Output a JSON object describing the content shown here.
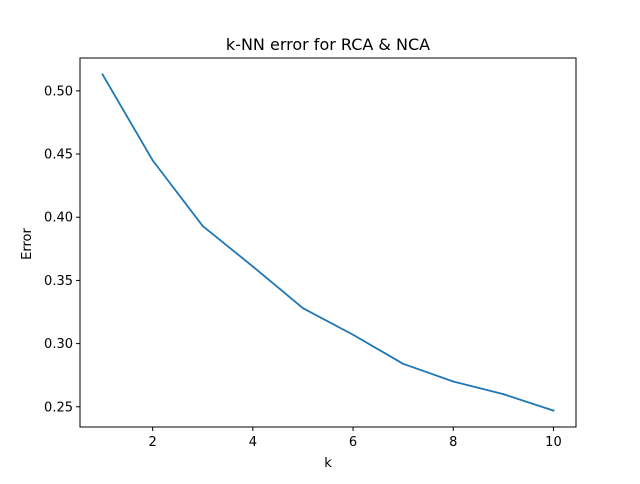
{
  "chart_data": {
    "type": "line",
    "title": "k-NN error for RCA & NCA",
    "xlabel": "k",
    "ylabel": "Error",
    "x": [
      1,
      2,
      3,
      4,
      5,
      6,
      7,
      8,
      9,
      10
    ],
    "series": [
      {
        "values": [
          0.513,
          0.445,
          0.393,
          0.361,
          0.328,
          0.307,
          0.284,
          0.27,
          0.26,
          0.247
        ],
        "color": "#1f77b4"
      }
    ],
    "xlim": [
      0.55,
      10.45
    ],
    "ylim": [
      0.234,
      0.526
    ],
    "xticks": [
      2,
      4,
      6,
      8,
      10
    ],
    "yticks": [
      0.25,
      0.3,
      0.35,
      0.4,
      0.45,
      0.5
    ],
    "xtick_labels": [
      "2",
      "4",
      "6",
      "8",
      "10"
    ],
    "ytick_labels": [
      "0.25",
      "0.30",
      "0.35",
      "0.40",
      "0.45",
      "0.50"
    ],
    "grid": false,
    "legend": "none"
  }
}
